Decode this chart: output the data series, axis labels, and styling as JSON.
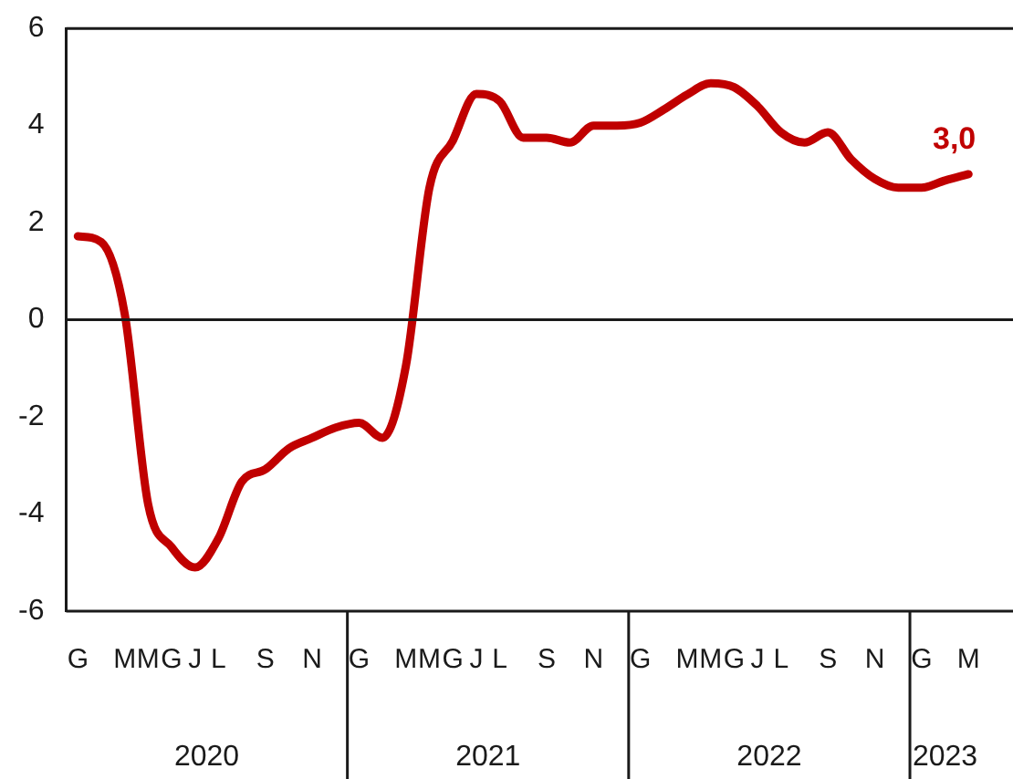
{
  "chart_data": {
    "type": "line",
    "categories": [
      "G",
      null,
      "M",
      "M",
      "G",
      "J",
      "L",
      null,
      "S",
      null,
      "N",
      null,
      "G",
      null,
      "M",
      "M",
      "G",
      "J",
      "L",
      null,
      "S",
      null,
      "N",
      null,
      "G",
      null,
      "M",
      "M",
      "G",
      "J",
      "L",
      null,
      "S",
      null,
      "N",
      null,
      "G",
      null,
      "M"
    ],
    "series": [
      {
        "color": "#c00000",
        "values": [
          1.72,
          1.6,
          0.12,
          -3.8,
          -4.68,
          -5.1,
          -4.5,
          -3.33,
          -3.08,
          -2.65,
          -2.43,
          -2.22,
          -2.12,
          -2.43,
          -0.94,
          2.72,
          3.69,
          4.65,
          4.5,
          3.75,
          3.75,
          3.65,
          4.0,
          4.0,
          4.06,
          4.33,
          4.64,
          4.87,
          4.79,
          4.4,
          3.86,
          3.65,
          3.86,
          3.3,
          2.9,
          2.72,
          2.72,
          2.87,
          3.0
        ],
        "value_labels": [
          null,
          null,
          null,
          null,
          null,
          null,
          null,
          null,
          null,
          null,
          null,
          null,
          null,
          null,
          null,
          null,
          null,
          null,
          null,
          null,
          null,
          null,
          null,
          null,
          null,
          null,
          null,
          null,
          null,
          null,
          null,
          null,
          null,
          null,
          null,
          null,
          null,
          null,
          "3,0"
        ]
      }
    ],
    "ylim": [
      -6,
      6
    ],
    "yticks": [
      -6,
      -4,
      -2,
      0,
      2,
      4,
      6
    ],
    "annotations": [
      "2020",
      "2021",
      "2022",
      "2023"
    ],
    "ref_lines": [
      {
        "axis": "y",
        "value": 0,
        "color": "#1a1a1a"
      }
    ],
    "grid": false,
    "legend": false,
    "marker": "none",
    "line_style": "solid"
  }
}
